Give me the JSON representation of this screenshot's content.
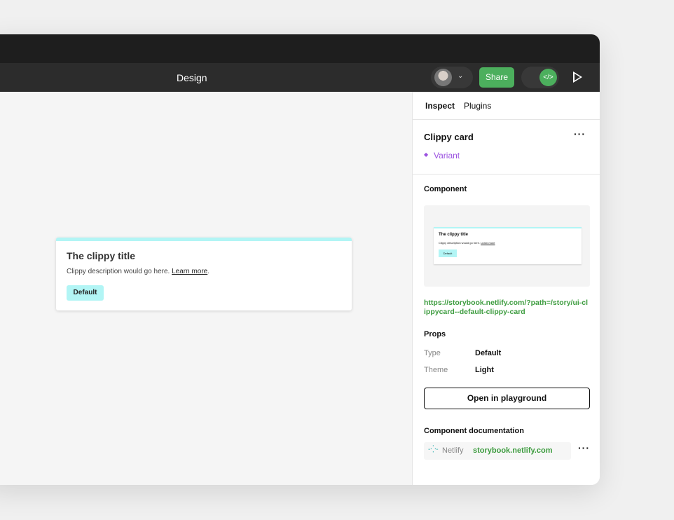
{
  "toolbar": {
    "title": "Design",
    "share_label": "Share",
    "code_icon": "</>"
  },
  "canvas": {
    "card": {
      "title": "The clippy title",
      "description": "Clippy description would go here.",
      "link": "Learn more",
      "badge": "Default"
    }
  },
  "panel": {
    "tabs": [
      {
        "label": "Inspect",
        "active": true
      },
      {
        "label": "Plugins",
        "active": false
      }
    ],
    "component_name": "Clippy card",
    "variant_label": "Variant",
    "variant_color": "#9b51e0",
    "component_heading": "Component",
    "preview": {
      "title": "The clippy title",
      "description": "Clippy description would go here.",
      "link": "Learn more",
      "badge": "Default"
    },
    "url": "https://storybook.netlify.com/?path=/story/ui-clippycard--default-clippy-card",
    "props_heading": "Props",
    "props": [
      {
        "name": "Type",
        "value": "Default"
      },
      {
        "name": "Theme",
        "value": "Light"
      }
    ],
    "playground_button": "Open in playground",
    "docs_heading": "Component documentation",
    "docs": {
      "source": "Netlify",
      "link": "storybook.netlify.com"
    }
  },
  "colors": {
    "accent": "#4caf5d",
    "link": "#3d9c3f",
    "card_top": "#b2f5f5"
  }
}
